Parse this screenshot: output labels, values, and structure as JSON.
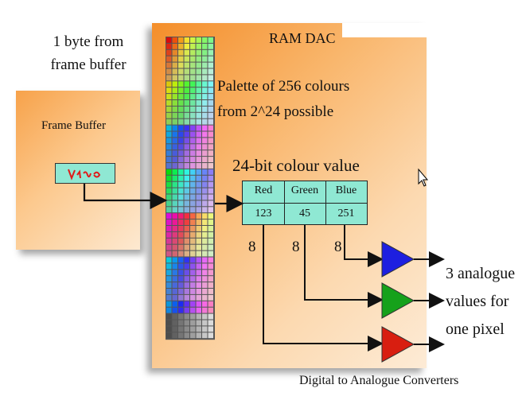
{
  "caption_top": "1 byte from frame buffer",
  "frame_buffer": {
    "title": "Frame Buffer"
  },
  "ram_dac": {
    "title": "RAM DAC"
  },
  "palette": {
    "label_line1": "Palette of 256 colours",
    "label_line2": "from 2^24 possible"
  },
  "colour_value": {
    "label": "24-bit colour value",
    "headers": [
      "Red",
      "Green",
      "Blue"
    ],
    "values": [
      "123",
      "45",
      "251"
    ]
  },
  "bits": [
    "8",
    "8",
    "8"
  ],
  "output": {
    "line1": "3 analogue",
    "line2": "values for",
    "line3": "one pixel"
  },
  "dac_caption": "Digital to Analogue Converters",
  "colors": {
    "dac_blue": "#1d1fe0",
    "dac_green": "#16a11b",
    "dac_red": "#d81e10",
    "cell_bg": "#8fe8d3"
  }
}
